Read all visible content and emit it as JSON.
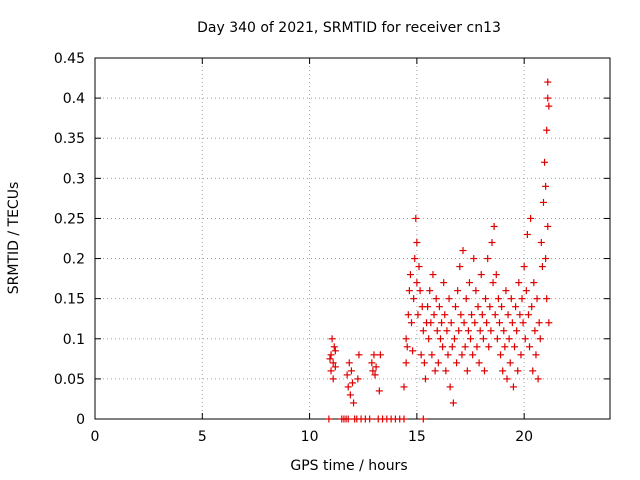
{
  "chart_data": {
    "type": "scatter",
    "title": "Day 340 of 2021, SRMTID for receiver cn13",
    "xlabel": "GPS time / hours",
    "ylabel": "SRMTID / TECUs",
    "xlim": [
      0,
      24
    ],
    "ylim": [
      0,
      0.45
    ],
    "xticks": [
      0,
      5,
      10,
      15,
      20
    ],
    "xtick_labels": [
      "0",
      "5",
      "10",
      "15",
      "20"
    ],
    "yticks": [
      0,
      0.05,
      0.1,
      0.15,
      0.2,
      0.25,
      0.3,
      0.35,
      0.4,
      0.45
    ],
    "ytick_labels": [
      "0",
      "0.05",
      "0.1",
      "0.15",
      "0.2",
      "0.25",
      "0.3",
      "0.35",
      "0.4",
      "0.45"
    ],
    "grid": true,
    "marker": "plus",
    "color": "#e00000",
    "series": [
      {
        "name": "SRMTID",
        "points": [
          [
            10.9,
            0.0
          ],
          [
            11.0,
            0.06
          ],
          [
            11.0,
            0.08
          ],
          [
            11.05,
            0.1
          ],
          [
            11.1,
            0.07
          ],
          [
            11.1,
            0.05
          ],
          [
            11.15,
            0.09
          ],
          [
            11.2,
            0.065
          ],
          [
            11.2,
            0.085
          ],
          [
            10.95,
            0.075
          ],
          [
            11.5,
            0.0
          ],
          [
            11.6,
            0.0
          ],
          [
            11.7,
            0.0
          ],
          [
            11.8,
            0.0
          ],
          [
            11.75,
            0.055
          ],
          [
            11.8,
            0.04
          ],
          [
            11.85,
            0.07
          ],
          [
            11.9,
            0.03
          ],
          [
            11.95,
            0.06
          ],
          [
            12.0,
            0.045
          ],
          [
            12.05,
            0.02
          ],
          [
            12.1,
            0.0
          ],
          [
            12.2,
            0.0
          ],
          [
            12.25,
            0.05
          ],
          [
            12.3,
            0.08
          ],
          [
            12.4,
            0.0
          ],
          [
            12.6,
            0.0
          ],
          [
            12.8,
            0.0
          ],
          [
            12.9,
            0.07
          ],
          [
            12.95,
            0.06
          ],
          [
            13.0,
            0.08
          ],
          [
            13.05,
            0.055
          ],
          [
            13.1,
            0.065
          ],
          [
            13.2,
            0.0
          ],
          [
            13.25,
            0.035
          ],
          [
            13.3,
            0.08
          ],
          [
            13.4,
            0.0
          ],
          [
            13.6,
            0.0
          ],
          [
            13.8,
            0.0
          ],
          [
            14.0,
            0.0
          ],
          [
            14.2,
            0.0
          ],
          [
            14.4,
            0.0
          ],
          [
            14.4,
            0.04
          ],
          [
            14.5,
            0.07
          ],
          [
            14.5,
            0.1
          ],
          [
            14.55,
            0.09
          ],
          [
            14.6,
            0.13
          ],
          [
            14.65,
            0.16
          ],
          [
            14.7,
            0.18
          ],
          [
            14.75,
            0.12
          ],
          [
            14.8,
            0.085
          ],
          [
            14.85,
            0.15
          ],
          [
            14.9,
            0.2
          ],
          [
            14.95,
            0.25
          ],
          [
            15.0,
            0.22
          ],
          [
            15.0,
            0.17
          ],
          [
            15.05,
            0.13
          ],
          [
            15.1,
            0.19
          ],
          [
            15.15,
            0.16
          ],
          [
            15.2,
            0.08
          ],
          [
            15.25,
            0.14
          ],
          [
            15.3,
            0.0
          ],
          [
            15.3,
            0.11
          ],
          [
            15.35,
            0.07
          ],
          [
            15.4,
            0.05
          ],
          [
            15.45,
            0.12
          ],
          [
            15.5,
            0.14
          ],
          [
            15.55,
            0.1
          ],
          [
            15.6,
            0.16
          ],
          [
            15.65,
            0.12
          ],
          [
            15.7,
            0.08
          ],
          [
            15.75,
            0.18
          ],
          [
            15.8,
            0.13
          ],
          [
            15.85,
            0.06
          ],
          [
            15.9,
            0.15
          ],
          [
            15.95,
            0.11
          ],
          [
            16.0,
            0.07
          ],
          [
            16.05,
            0.14
          ],
          [
            16.1,
            0.1
          ],
          [
            16.15,
            0.12
          ],
          [
            16.2,
            0.09
          ],
          [
            16.25,
            0.17
          ],
          [
            16.3,
            0.13
          ],
          [
            16.35,
            0.06
          ],
          [
            16.4,
            0.11
          ],
          [
            16.45,
            0.08
          ],
          [
            16.5,
            0.15
          ],
          [
            16.55,
            0.04
          ],
          [
            16.6,
            0.12
          ],
          [
            16.65,
            0.09
          ],
          [
            16.7,
            0.02
          ],
          [
            16.75,
            0.1
          ],
          [
            16.8,
            0.14
          ],
          [
            16.85,
            0.07
          ],
          [
            16.9,
            0.16
          ],
          [
            16.95,
            0.11
          ],
          [
            17.0,
            0.19
          ],
          [
            17.05,
            0.13
          ],
          [
            17.1,
            0.08
          ],
          [
            17.15,
            0.21
          ],
          [
            17.2,
            0.12
          ],
          [
            17.25,
            0.09
          ],
          [
            17.3,
            0.15
          ],
          [
            17.35,
            0.06
          ],
          [
            17.4,
            0.11
          ],
          [
            17.45,
            0.17
          ],
          [
            17.5,
            0.1
          ],
          [
            17.55,
            0.13
          ],
          [
            17.6,
            0.08
          ],
          [
            17.65,
            0.2
          ],
          [
            17.7,
            0.12
          ],
          [
            17.75,
            0.16
          ],
          [
            17.8,
            0.09
          ],
          [
            17.85,
            0.14
          ],
          [
            17.9,
            0.07
          ],
          [
            17.95,
            0.11
          ],
          [
            18.0,
            0.18
          ],
          [
            18.05,
            0.13
          ],
          [
            18.1,
            0.1
          ],
          [
            18.15,
            0.06
          ],
          [
            18.2,
            0.15
          ],
          [
            18.25,
            0.12
          ],
          [
            18.3,
            0.2
          ],
          [
            18.35,
            0.09
          ],
          [
            18.4,
            0.14
          ],
          [
            18.45,
            0.11
          ],
          [
            18.5,
            0.22
          ],
          [
            18.55,
            0.17
          ],
          [
            18.6,
            0.24
          ],
          [
            18.65,
            0.13
          ],
          [
            18.7,
            0.18
          ],
          [
            18.75,
            0.1
          ],
          [
            18.8,
            0.15
          ],
          [
            18.85,
            0.12
          ],
          [
            18.9,
            0.08
          ],
          [
            18.95,
            0.14
          ],
          [
            19.0,
            0.06
          ],
          [
            19.05,
            0.11
          ],
          [
            19.1,
            0.09
          ],
          [
            19.15,
            0.16
          ],
          [
            19.2,
            0.05
          ],
          [
            19.25,
            0.13
          ],
          [
            19.3,
            0.1
          ],
          [
            19.35,
            0.07
          ],
          [
            19.4,
            0.15
          ],
          [
            19.45,
            0.12
          ],
          [
            19.5,
            0.04
          ],
          [
            19.55,
            0.09
          ],
          [
            19.6,
            0.14
          ],
          [
            19.65,
            0.11
          ],
          [
            19.7,
            0.06
          ],
          [
            19.75,
            0.17
          ],
          [
            19.8,
            0.13
          ],
          [
            19.85,
            0.08
          ],
          [
            19.9,
            0.15
          ],
          [
            19.95,
            0.12
          ],
          [
            20.0,
            0.19
          ],
          [
            20.05,
            0.1
          ],
          [
            20.1,
            0.16
          ],
          [
            20.15,
            0.23
          ],
          [
            20.2,
            0.13
          ],
          [
            20.25,
            0.09
          ],
          [
            20.3,
            0.25
          ],
          [
            20.35,
            0.14
          ],
          [
            20.4,
            0.06
          ],
          [
            20.45,
            0.17
          ],
          [
            20.5,
            0.11
          ],
          [
            20.55,
            0.08
          ],
          [
            20.6,
            0.15
          ],
          [
            20.65,
            0.05
          ],
          [
            20.7,
            0.12
          ],
          [
            20.75,
            0.1
          ],
          [
            20.8,
            0.22
          ],
          [
            20.85,
            0.19
          ],
          [
            20.9,
            0.27
          ],
          [
            20.95,
            0.32
          ],
          [
            21.0,
            0.29
          ],
          [
            21.0,
            0.2
          ],
          [
            21.05,
            0.36
          ],
          [
            21.05,
            0.15
          ],
          [
            21.1,
            0.4
          ],
          [
            21.1,
            0.42
          ],
          [
            21.1,
            0.24
          ],
          [
            21.15,
            0.39
          ],
          [
            21.15,
            0.12
          ]
        ]
      }
    ]
  }
}
